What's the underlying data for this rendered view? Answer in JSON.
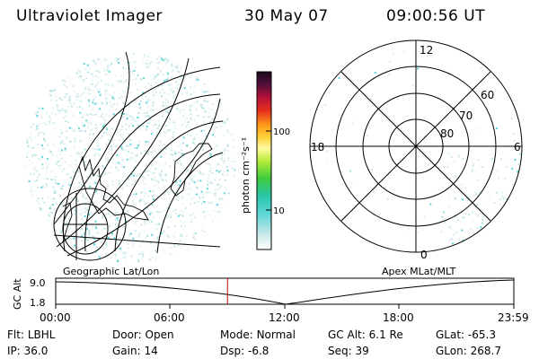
{
  "header": {
    "instrument": "Ultraviolet Imager",
    "date": "30 May 07",
    "time": "09:00:56 UT"
  },
  "colorbar": {
    "label": "photon cm⁻²s⁻¹",
    "ticks": [
      "100",
      "10"
    ]
  },
  "left_panel": {
    "caption": "Geographic Lat/Lon"
  },
  "right_panel": {
    "caption": "Apex MLat/MLT",
    "mlt_labels": {
      "top": "12",
      "left": "18",
      "right": "6",
      "bottom": "0"
    },
    "lat_labels": [
      "60",
      "70",
      "80"
    ]
  },
  "timeline": {
    "ylabel": "GC Alt",
    "y_ticks": [
      "9.0",
      "1.8"
    ],
    "x_ticks": [
      "00:00",
      "06:00",
      "12:00",
      "18:00",
      "23:59"
    ],
    "current_time_fraction": 0.375
  },
  "info": [
    [
      {
        "label": "Flt:",
        "value": "LBHL"
      },
      {
        "label": "Door:",
        "value": "Open"
      },
      {
        "label": "Mode:",
        "value": "Normal"
      },
      {
        "label": "GC Alt:",
        "value": "6.1 Re"
      },
      {
        "label": "GLat:",
        "value": "-65.3"
      }
    ],
    [
      {
        "label": "IP:",
        "value": "36.0"
      },
      {
        "label": "Gain:",
        "value": "14"
      },
      {
        "label": "Dsp:",
        "value": "-6.8"
      },
      {
        "label": "Seq:",
        "value": "39"
      },
      {
        "label": "GLon:",
        "value": "268.7"
      }
    ]
  ]
}
